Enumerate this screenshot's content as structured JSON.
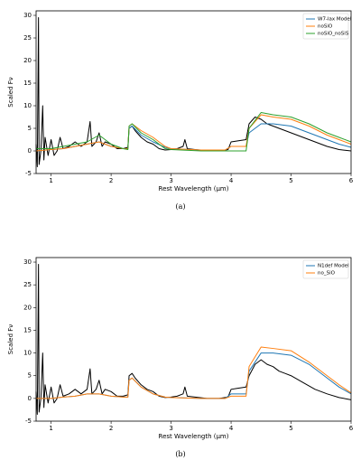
{
  "chart_data": [
    {
      "type": "line",
      "caption": "(a)",
      "xlabel": "Rest Wavelength (μm)",
      "ylabel": "Scaled Fν",
      "xlim": [
        0.75,
        6
      ],
      "ylim": [
        -5,
        31
      ],
      "xticks": [
        1,
        2,
        3,
        4,
        5,
        6
      ],
      "yticks": [
        -5,
        0,
        5,
        10,
        15,
        20,
        25,
        30
      ],
      "legend": "upper right",
      "series": [
        {
          "color": "#000000",
          "x": [
            0.75,
            0.77,
            0.79,
            0.8,
            0.83,
            0.86,
            0.88,
            0.9,
            0.95,
            1.0,
            1.05,
            1.1,
            1.15,
            1.2,
            1.3,
            1.4,
            1.5,
            1.6,
            1.65,
            1.68,
            1.75,
            1.8,
            1.85,
            1.9,
            2.0,
            2.1,
            2.2,
            2.28,
            2.3,
            2.35,
            2.4,
            2.5,
            2.6,
            2.7,
            2.8,
            2.9,
            3.0,
            3.1,
            3.2,
            3.23,
            3.27,
            3.4,
            3.6,
            3.8,
            3.95,
            4.0,
            4.1,
            4.25,
            4.3,
            4.4,
            4.5,
            4.6,
            4.7,
            4.8,
            4.9,
            5.0,
            5.2,
            5.4,
            5.6,
            5.8,
            6.0
          ],
          "values": [
            1.5,
            -3.5,
            29.5,
            -3,
            0,
            10,
            -2,
            3,
            -1,
            2.5,
            -1,
            0,
            3,
            0.5,
            1,
            2,
            1,
            2,
            6.5,
            1,
            2,
            4,
            1,
            2,
            1.5,
            0.5,
            0.5,
            0.8,
            5,
            5.5,
            4.5,
            3,
            2,
            1.5,
            0.5,
            0.2,
            0.3,
            0.5,
            1,
            2.5,
            0.5,
            0.3,
            0,
            0,
            0.3,
            2,
            2.2,
            2.5,
            6,
            7.5,
            7,
            6,
            5.5,
            5,
            4.5,
            4,
            3,
            2,
            1,
            0.3,
            0
          ]
        },
        {
          "name": "W7-lax Model",
          "color": "#1f77b4",
          "x": [
            0.75,
            1.0,
            1.2,
            1.4,
            1.6,
            1.8,
            2.0,
            2.2,
            2.28,
            2.3,
            2.35,
            2.5,
            2.7,
            2.9,
            3.0,
            3.5,
            3.9,
            4.0,
            4.25,
            4.3,
            4.5,
            4.7,
            5.0,
            5.3,
            5.6,
            5.8,
            6.0
          ],
          "values": [
            0,
            0.3,
            0.5,
            1,
            1.5,
            2,
            1,
            0.5,
            0.5,
            5,
            5.5,
            3.5,
            2,
            0.8,
            0.5,
            0.2,
            0.2,
            1,
            1,
            4,
            6,
            6,
            5.5,
            4,
            2.5,
            1.5,
            0.8
          ]
        },
        {
          "name": "noSiO",
          "color": "#ff7f0e",
          "x": [
            0.75,
            1.0,
            1.2,
            1.4,
            1.6,
            1.8,
            2.0,
            2.2,
            2.28,
            2.3,
            2.35,
            2.5,
            2.7,
            2.9,
            3.0,
            3.5,
            3.9,
            4.0,
            4.25,
            4.3,
            4.5,
            4.7,
            5.0,
            5.3,
            5.6,
            5.8,
            6.0
          ],
          "values": [
            0,
            0.3,
            0.5,
            1,
            1.5,
            2,
            1,
            0.5,
            0.5,
            5.5,
            6,
            4.5,
            3,
            1,
            0.5,
            0.2,
            0.2,
            1,
            1,
            5,
            8,
            7.5,
            7,
            5.5,
            3.5,
            2.5,
            1.5
          ]
        },
        {
          "name": "noSiO_noSiS",
          "color": "#2ca02c",
          "x": [
            0.75,
            1.0,
            1.2,
            1.4,
            1.6,
            1.8,
            2.0,
            2.2,
            2.28,
            2.3,
            2.35,
            2.5,
            2.7,
            2.9,
            3.0,
            3.5,
            3.9,
            4.0,
            4.25,
            4.3,
            4.5,
            4.7,
            5.0,
            5.3,
            5.6,
            5.8,
            6.0
          ],
          "values": [
            0.5,
            0.5,
            1,
            1.5,
            2,
            3.5,
            1.5,
            0.5,
            0.3,
            5.5,
            6,
            4,
            2.5,
            0.5,
            0.3,
            0,
            0,
            0,
            0,
            5,
            8.5,
            8,
            7.5,
            6,
            4,
            3,
            2
          ]
        }
      ]
    },
    {
      "type": "line",
      "caption": "(b)",
      "xlabel": "Rest Wavelength (μm)",
      "ylabel": "Scaled Fν",
      "xlim": [
        0.75,
        6
      ],
      "ylim": [
        -5,
        31
      ],
      "xticks": [
        1,
        2,
        3,
        4,
        5,
        6
      ],
      "yticks": [
        -5,
        0,
        5,
        10,
        15,
        20,
        25,
        30
      ],
      "legend": "upper right",
      "series": [
        {
          "color": "#000000",
          "x": [
            0.75,
            0.77,
            0.79,
            0.8,
            0.83,
            0.86,
            0.88,
            0.9,
            0.95,
            1.0,
            1.05,
            1.1,
            1.15,
            1.2,
            1.3,
            1.4,
            1.5,
            1.6,
            1.65,
            1.68,
            1.75,
            1.8,
            1.85,
            1.9,
            2.0,
            2.1,
            2.2,
            2.28,
            2.3,
            2.35,
            2.4,
            2.5,
            2.6,
            2.7,
            2.8,
            2.9,
            3.0,
            3.1,
            3.2,
            3.23,
            3.27,
            3.4,
            3.6,
            3.8,
            3.95,
            4.0,
            4.1,
            4.25,
            4.3,
            4.4,
            4.5,
            4.6,
            4.7,
            4.8,
            4.9,
            5.0,
            5.2,
            5.4,
            5.6,
            5.8,
            6.0
          ],
          "values": [
            1.5,
            -3.5,
            29.5,
            -3,
            0,
            10,
            -2,
            3,
            -1,
            2.5,
            -1,
            0,
            3,
            0.5,
            1,
            2,
            1,
            2,
            6.5,
            1,
            2,
            4,
            1,
            2,
            1.5,
            0.5,
            0.5,
            0.8,
            5,
            5.5,
            4.5,
            3,
            2,
            1.5,
            0.5,
            0.2,
            0.3,
            0.5,
            1,
            2.5,
            0.5,
            0.3,
            0,
            0,
            0.3,
            2,
            2.2,
            2.5,
            5,
            7.5,
            8.5,
            7.5,
            7,
            6,
            5.5,
            5,
            3.5,
            2,
            1,
            0.2,
            -0.3
          ]
        },
        {
          "name": "N1def Model",
          "color": "#1f77b4",
          "x": [
            0.75,
            1.0,
            1.2,
            1.4,
            1.6,
            1.8,
            2.0,
            2.2,
            2.28,
            2.3,
            2.35,
            2.5,
            2.7,
            2.9,
            3.0,
            3.5,
            3.9,
            4.0,
            4.25,
            4.3,
            4.5,
            4.7,
            5.0,
            5.3,
            5.6,
            5.8,
            6.0
          ],
          "values": [
            0,
            0,
            0.3,
            0.5,
            1,
            1,
            0.5,
            0.3,
            0.3,
            4,
            4.5,
            2.5,
            1,
            0.3,
            0.2,
            0,
            0,
            1,
            1,
            6,
            10,
            10,
            9.5,
            7.5,
            4.5,
            2.5,
            1
          ]
        },
        {
          "name": "no_SiO",
          "color": "#ff7f0e",
          "x": [
            0.75,
            1.0,
            1.2,
            1.4,
            1.6,
            1.8,
            2.0,
            2.2,
            2.28,
            2.3,
            2.35,
            2.5,
            2.7,
            2.9,
            3.0,
            3.5,
            3.9,
            4.0,
            4.25,
            4.3,
            4.5,
            4.7,
            5.0,
            5.3,
            5.6,
            5.8,
            6.0
          ],
          "values": [
            0,
            0,
            0.3,
            0.5,
            1,
            1,
            0.5,
            0.3,
            0.3,
            4,
            4.5,
            2.5,
            1,
            0.3,
            0.2,
            0,
            0,
            0.5,
            0.5,
            7,
            11.3,
            11,
            10.5,
            8,
            5,
            3,
            1.2
          ]
        }
      ]
    }
  ]
}
